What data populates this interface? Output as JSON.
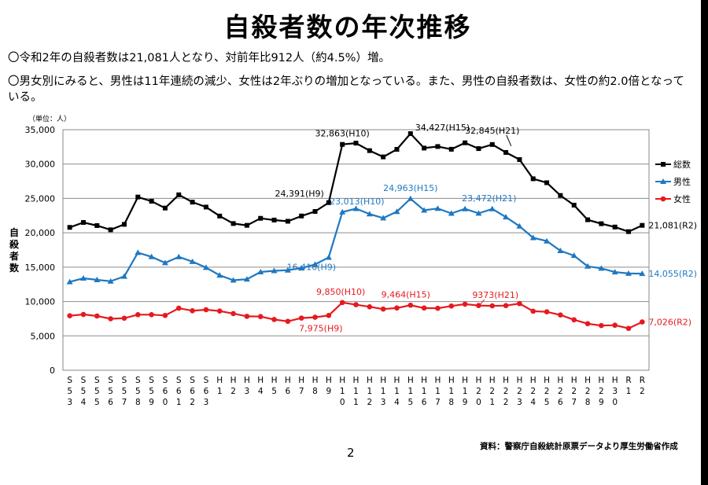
{
  "title": "自殺者数の年次推移",
  "bullets": [
    "〇令和2年の自殺者数は21,081人となり、対前年比912人（約4.5%）増。",
    "〇男女別にみると、男性は11年連続の減少、女性は2年ぶりの増加となっている。また、男性の自殺者数は、女性の約2.0倍となっている。"
  ],
  "colors": {
    "total": "#000000",
    "male": "#1f78c1",
    "female": "#e6191e"
  },
  "chart_data": {
    "type": "line",
    "unit_label": "（単位：人）",
    "ylabel": "自殺者数",
    "ylim": [
      0,
      35000
    ],
    "yticks": [
      "0",
      "5,000",
      "10,000",
      "15,000",
      "20,000",
      "25,000",
      "30,000",
      "35,000"
    ],
    "categories": [
      "S53",
      "S54",
      "S55",
      "S56",
      "S57",
      "S58",
      "S59",
      "S60",
      "S61",
      "S62",
      "S63",
      "H1",
      "H2",
      "H3",
      "H4",
      "H5",
      "H6",
      "H7",
      "H8",
      "H9",
      "H10",
      "H11",
      "H12",
      "H13",
      "H14",
      "H15",
      "H16",
      "H17",
      "H18",
      "H19",
      "H20",
      "H21",
      "H22",
      "H23",
      "H24",
      "H25",
      "H26",
      "H27",
      "H28",
      "H29",
      "H30",
      "R1",
      "R2"
    ],
    "grid": true,
    "legend": "right",
    "series": [
      {
        "name": "総数",
        "key": "total",
        "marker": "square",
        "values": [
          20788,
          21503,
          21048,
          20434,
          21228,
          25202,
          24596,
          23599,
          25524,
          24460,
          23742,
          22436,
          21346,
          21084,
          22104,
          21851,
          21679,
          22445,
          23104,
          24391,
          32863,
          33048,
          31957,
          31042,
          32143,
          34427,
          32325,
          32552,
          32155,
          33093,
          32249,
          32845,
          31690,
          30651,
          27858,
          27283,
          25427,
          24025,
          21897,
          21321,
          20840,
          20169,
          21081
        ]
      },
      {
        "name": "男性",
        "key": "male",
        "marker": "triangle",
        "values": [
          12859,
          13386,
          13155,
          12942,
          13654,
          17116,
          16508,
          15624,
          16497,
          15802,
          14934,
          13818,
          13102,
          13242,
          14296,
          14468,
          14560,
          14853,
          15393,
          16416,
          23013,
          23512,
          22727,
          22144,
          23080,
          24963,
          23272,
          23540,
          22813,
          23478,
          22831,
          23472,
          22283,
          20955,
          19273,
          18787,
          17386,
          16681,
          15121,
          14826,
          14290,
          14078,
          14055
        ]
      },
      {
        "name": "女性",
        "key": "female",
        "marker": "circle",
        "values": [
          7929,
          8117,
          7893,
          7492,
          7574,
          8086,
          8088,
          7975,
          9027,
          8658,
          8808,
          8618,
          8244,
          7842,
          7808,
          7383,
          7119,
          7592,
          7711,
          7975,
          9850,
          9536,
          9230,
          8898,
          9063,
          9464,
          9053,
          9012,
          9342,
          9615,
          9418,
          9373,
          9407,
          9696,
          8585,
          8496,
          8041,
          7344,
          6776,
          6495,
          6550,
          6091,
          7026
        ]
      }
    ],
    "annotations": [
      {
        "series": "total",
        "category": "H9",
        "text": "24,391(H9)"
      },
      {
        "series": "total",
        "category": "H10",
        "text": "32,863(H10)"
      },
      {
        "series": "total",
        "category": "H15",
        "text": "34,427(H15)"
      },
      {
        "series": "total",
        "category": "H21",
        "text": "32,845(H21)"
      },
      {
        "series": "total",
        "category": "R2",
        "text": "21,081(R2)"
      },
      {
        "series": "male",
        "category": "H9",
        "text": "16,416(H9)"
      },
      {
        "series": "male",
        "category": "H10",
        "text": "23,013(H10)"
      },
      {
        "series": "male",
        "category": "H15",
        "text": "24,963(H15)"
      },
      {
        "series": "male",
        "category": "H21",
        "text": "23,472(H21)"
      },
      {
        "series": "male",
        "category": "R2",
        "text": "14,055(R2)"
      },
      {
        "series": "female",
        "category": "H9",
        "text": "7,975(H9)"
      },
      {
        "series": "female",
        "category": "H10",
        "text": "9,850(H10)"
      },
      {
        "series": "female",
        "category": "H15",
        "text": "9,464(H15)"
      },
      {
        "series": "female",
        "category": "H21",
        "text": "9373(H21)"
      },
      {
        "series": "female",
        "category": "R2",
        "text": "7,026(R2)"
      }
    ]
  },
  "source": "資料：警察庁自殺統計原票データより厚生労働省作成",
  "page_number": "2"
}
